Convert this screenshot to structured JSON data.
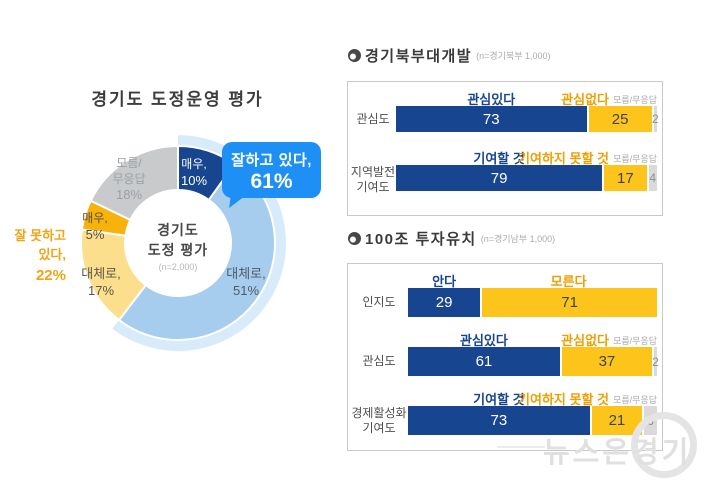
{
  "colors": {
    "navy": "#17458f",
    "gold": "#fdc41c",
    "dk_gray": "#dadada",
    "glow_blue": "#d8ebfa",
    "callout_blue": "#1e90f5",
    "neg_text": "#f2a313"
  },
  "watermark": {
    "text": "뉴스온경기"
  },
  "chart_data": [
    {
      "type": "pie",
      "title": "경기도 도정운영 평가",
      "center_lines": [
        "경기도",
        "도정 평가"
      ],
      "sample": "(n=2,000)",
      "segments": [
        {
          "name": "매우",
          "value": 10,
          "color": "#17458f",
          "lines": [
            "매우,",
            "10%"
          ]
        },
        {
          "name": "대체로",
          "value": 51,
          "color": "#a6cdee",
          "lines": [
            "대체로,",
            "51%"
          ]
        },
        {
          "name": "대체로",
          "value": 17,
          "color": "#fbdf8d",
          "lines": [
            "대체로,",
            "17%"
          ]
        },
        {
          "name": "매우",
          "value": 5,
          "color": "#f7b30c",
          "lines": [
            "매우,",
            "5%"
          ]
        },
        {
          "name": "모름/무응답",
          "value": 18,
          "color": "#c9cacc",
          "lines": [
            "모름/",
            "무응답",
            "18%"
          ]
        }
      ],
      "annotations": {
        "positive": {
          "label": "잘하고 있다,",
          "value": "61%"
        },
        "negative": {
          "lines": [
            "잘 못하고",
            "있다,"
          ],
          "value": "22%"
        }
      }
    },
    {
      "type": "bar",
      "title": "경기북부대개발",
      "sample": "(n=경기북부 1,000)",
      "rows": [
        {
          "label": "관심도",
          "pos_header": "관심있다",
          "neg_header": "관심없다",
          "dk_header": "모름/무응답",
          "values": [
            73,
            25,
            2
          ]
        },
        {
          "label": "지역발전\n기여도",
          "pos_header": "기여할 것",
          "neg_header": "기여하지 못할 것",
          "dk_header": "모름/무응답",
          "values": [
            79,
            17,
            4
          ]
        }
      ]
    },
    {
      "type": "bar",
      "title": "100조 투자유치",
      "sample": "(n=경기남부 1,000)",
      "rows": [
        {
          "label": "인지도",
          "pos_header": "안다",
          "neg_header": "모른다",
          "dk_header": "",
          "values": [
            29,
            71,
            0
          ]
        },
        {
          "label": "관심도",
          "pos_header": "관심있다",
          "neg_header": "관심없다",
          "dk_header": "모름/무응답",
          "values": [
            61,
            37,
            2
          ]
        },
        {
          "label": "경제활성화\n기여도",
          "pos_header": "기여할 것",
          "neg_header": "기여하지 못할 것",
          "dk_header": "모름/무응답",
          "values": [
            73,
            21,
            6
          ]
        }
      ]
    }
  ]
}
